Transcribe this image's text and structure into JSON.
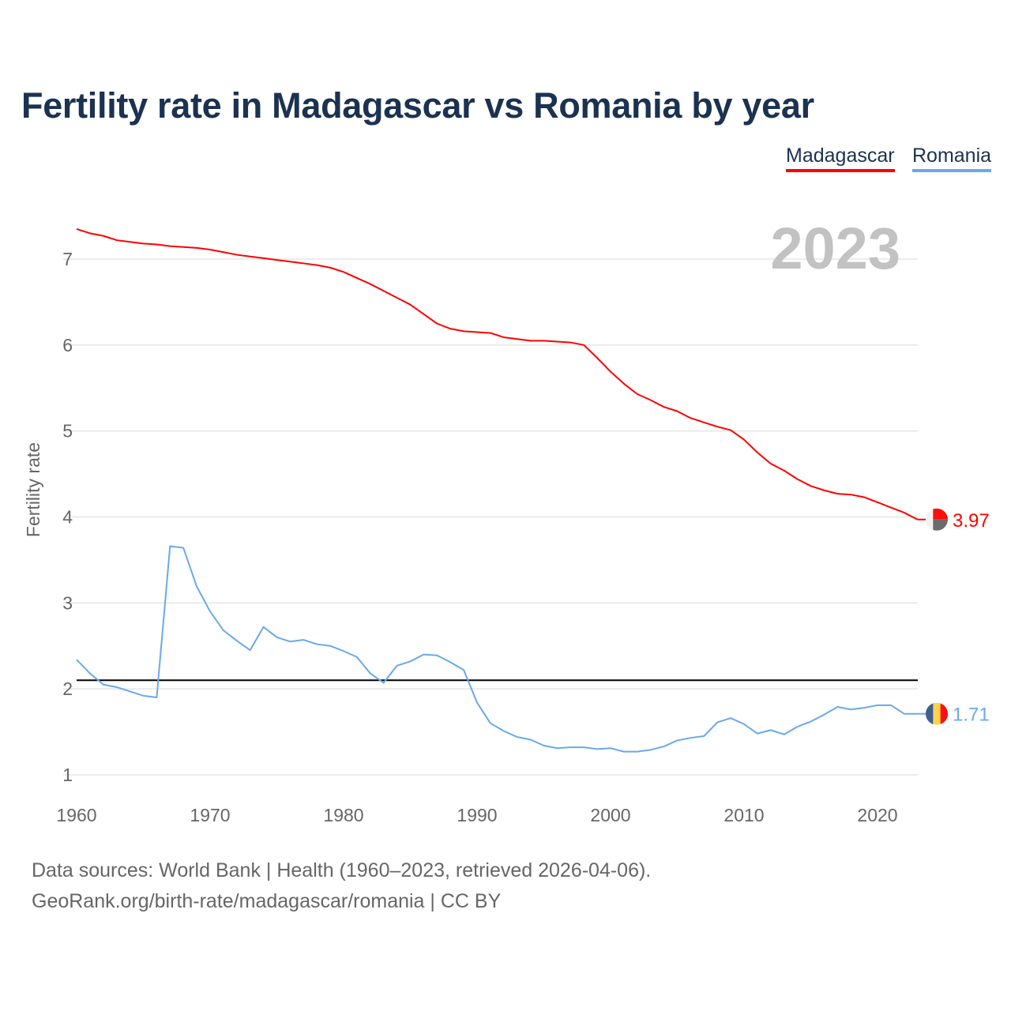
{
  "title": "Fertility rate in Madagascar vs Romania by year",
  "footer": {
    "line1": "Data sources: World Bank | Health (1960–2023, retrieved 2026-04-06).",
    "line2": "GeoRank.org/birth-rate/madagascar/romania | CC BY"
  },
  "chart_data": {
    "type": "line",
    "title": "Fertility rate in Madagascar vs Romania by year",
    "xlabel": "",
    "ylabel": "Fertility rate",
    "year_watermark": "2023",
    "xlim": [
      1960,
      2023
    ],
    "ylim": [
      0.75,
      7.6
    ],
    "xticks": [
      "1960",
      "1970",
      "1980",
      "1990",
      "2000",
      "2010",
      "2020"
    ],
    "yticks": [
      "1",
      "2",
      "3",
      "4",
      "5",
      "6",
      "7"
    ],
    "grid": true,
    "legend_position": "top-right",
    "reference_line": 2.1,
    "x": [
      1960,
      1961,
      1962,
      1963,
      1964,
      1965,
      1966,
      1967,
      1968,
      1969,
      1970,
      1971,
      1972,
      1973,
      1974,
      1975,
      1976,
      1977,
      1978,
      1979,
      1980,
      1981,
      1982,
      1983,
      1984,
      1985,
      1986,
      1987,
      1988,
      1989,
      1990,
      1991,
      1992,
      1993,
      1994,
      1995,
      1996,
      1997,
      1998,
      1999,
      2000,
      2001,
      2002,
      2003,
      2004,
      2005,
      2006,
      2007,
      2008,
      2009,
      2010,
      2011,
      2012,
      2013,
      2014,
      2015,
      2016,
      2017,
      2018,
      2019,
      2020,
      2021,
      2022,
      2023
    ],
    "series": [
      {
        "name": "Madagascar",
        "color": "#ff0000",
        "end_label": "3.97",
        "values": [
          7.35,
          7.3,
          7.27,
          7.22,
          7.2,
          7.18,
          7.17,
          7.15,
          7.14,
          7.13,
          7.11,
          7.08,
          7.05,
          7.03,
          7.01,
          6.99,
          6.97,
          6.95,
          6.93,
          6.9,
          6.85,
          6.78,
          6.71,
          6.63,
          6.55,
          6.47,
          6.36,
          6.25,
          6.19,
          6.16,
          6.15,
          6.14,
          6.09,
          6.07,
          6.05,
          6.05,
          6.04,
          6.03,
          6.0,
          5.85,
          5.69,
          5.55,
          5.43,
          5.36,
          5.28,
          5.23,
          5.15,
          5.1,
          5.05,
          5.01,
          4.9,
          4.75,
          4.62,
          4.54,
          4.44,
          4.36,
          4.31,
          4.27,
          4.26,
          4.23,
          4.17,
          4.11,
          4.05,
          3.97
        ]
      },
      {
        "name": "Romania",
        "color": "#6aa9e9",
        "end_label": "1.71",
        "values": [
          2.34,
          2.18,
          2.05,
          2.02,
          1.97,
          1.92,
          1.9,
          3.66,
          3.64,
          3.19,
          2.9,
          2.68,
          2.56,
          2.45,
          2.72,
          2.6,
          2.55,
          2.57,
          2.52,
          2.5,
          2.44,
          2.37,
          2.18,
          2.07,
          2.27,
          2.32,
          2.4,
          2.39,
          2.31,
          2.22,
          1.84,
          1.6,
          1.51,
          1.44,
          1.41,
          1.34,
          1.31,
          1.32,
          1.32,
          1.3,
          1.31,
          1.27,
          1.27,
          1.29,
          1.33,
          1.4,
          1.43,
          1.45,
          1.61,
          1.66,
          1.59,
          1.48,
          1.52,
          1.47,
          1.56,
          1.62,
          1.7,
          1.79,
          1.76,
          1.78,
          1.81,
          1.81,
          1.71,
          1.71
        ]
      }
    ]
  }
}
